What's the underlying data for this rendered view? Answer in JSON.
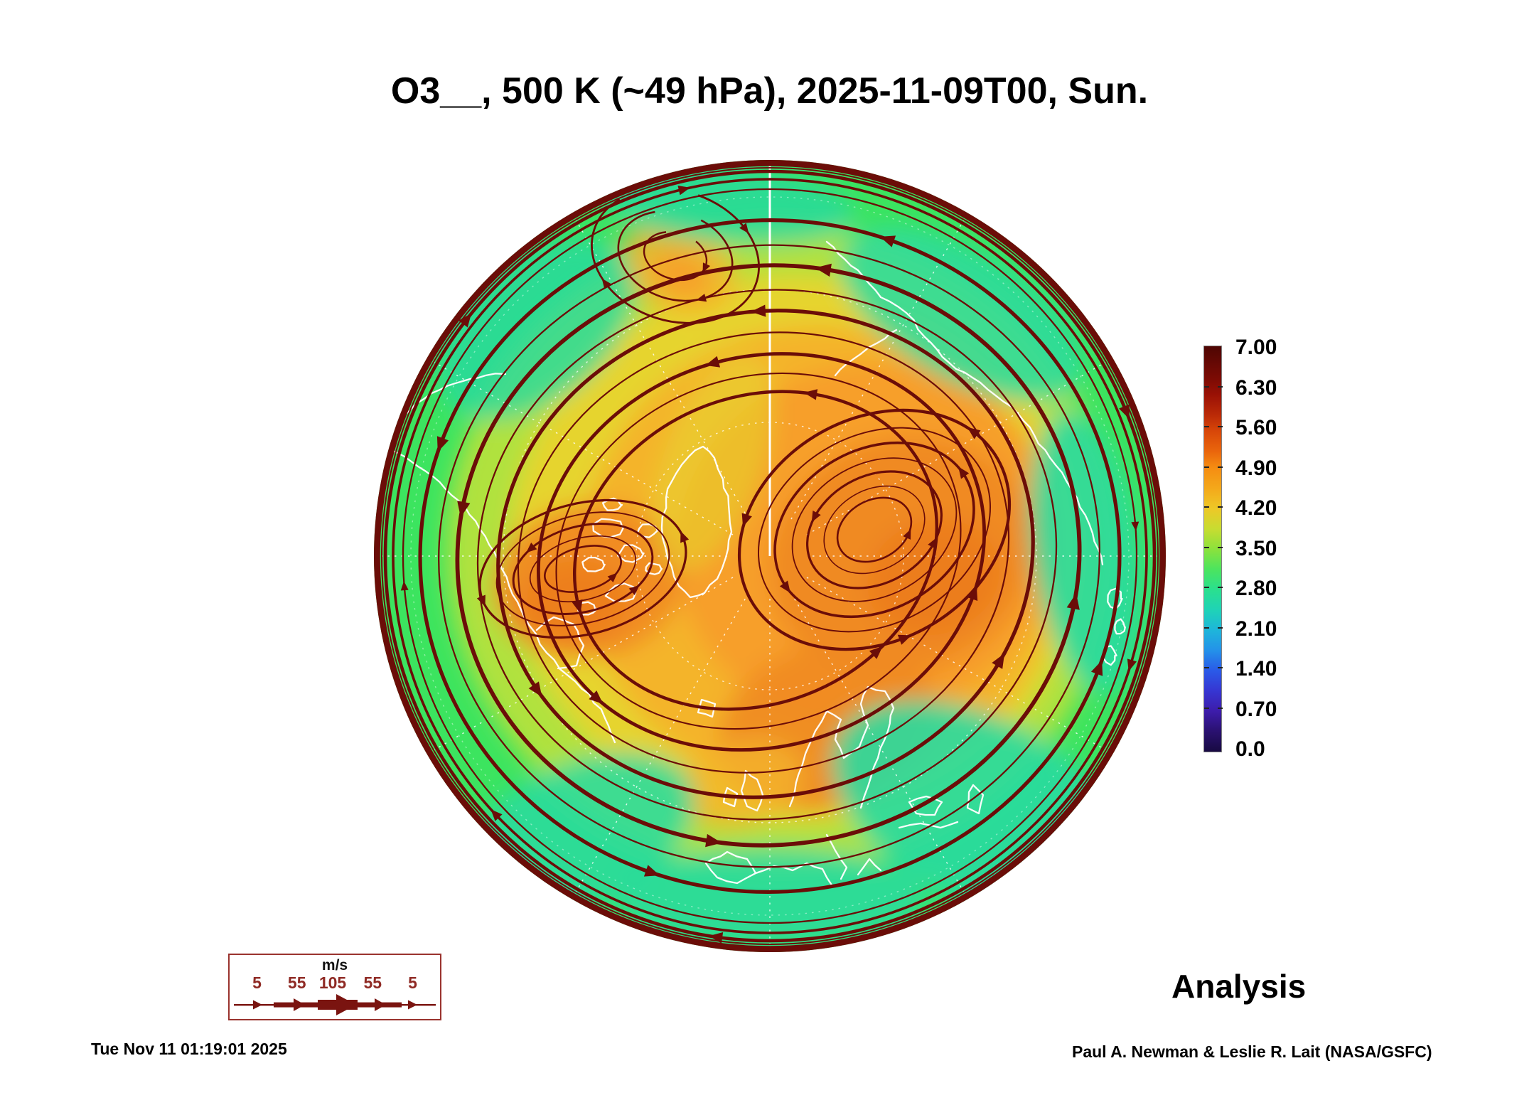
{
  "title": "O3__, 500 K (~49 hPa), 2025-11-09T00, Sun.",
  "colorbar": {
    "ticks": [
      "7.00",
      "6.30",
      "5.60",
      "4.90",
      "4.20",
      "3.50",
      "2.80",
      "2.10",
      "1.40",
      "0.70",
      "0.0"
    ],
    "value_range": [
      0.0,
      7.0
    ],
    "gradient": [
      [
        "0%",
        "#4e0603"
      ],
      [
        "8%",
        "#7c0b04"
      ],
      [
        "12%",
        "#9a1105"
      ],
      [
        "17%",
        "#bb2a07"
      ],
      [
        "21%",
        "#d84709"
      ],
      [
        "26%",
        "#ea660c"
      ],
      [
        "30%",
        "#f58d12"
      ],
      [
        "35%",
        "#f4a81a"
      ],
      [
        "40%",
        "#eec827"
      ],
      [
        "45%",
        "#c8dc31"
      ],
      [
        "50%",
        "#8ce23c"
      ],
      [
        "55%",
        "#4ce45e"
      ],
      [
        "60%",
        "#2ae08e"
      ],
      [
        "65%",
        "#1fd3b6"
      ],
      [
        "70%",
        "#1eb6da"
      ],
      [
        "75%",
        "#2492e9"
      ],
      [
        "80%",
        "#2a5ae8"
      ],
      [
        "85%",
        "#3636d2"
      ],
      [
        "90%",
        "#3d1cab"
      ],
      [
        "95%",
        "#2a1170"
      ],
      [
        "100%",
        "#180a42"
      ]
    ]
  },
  "wind_legend": {
    "unit": "m/s",
    "values": [
      "5",
      "55",
      "105",
      "55",
      "5"
    ],
    "value_positions_pct": [
      13,
      32,
      49,
      68,
      87
    ]
  },
  "footer": {
    "run_label": "Analysis",
    "timestamp": "Tue Nov 11 01:19:01 2025",
    "credit": "Paul A. Newman & Leslie R. Lait (NASA/GSFC)"
  },
  "map": {
    "colors": {
      "streamline": "#6b0d08",
      "rim": "#6b0d08",
      "coastline": "#ffffff",
      "graticule": "#ffffff",
      "field_base_green": "#3ce45f",
      "field_yellow_green": "#b6e23c",
      "field_yellow": "#e6d42e",
      "field_light_orange": "#f4b42c",
      "field_orange": "#f79f2a",
      "field_deep_orange": "#f08a24",
      "field_deeper_orange": "#ec7d1f",
      "field_teal": "#28daa0",
      "legend_number": "#8f2a24",
      "legend_border": "#9a332e",
      "legend_glyph": "#7a1410"
    }
  }
}
